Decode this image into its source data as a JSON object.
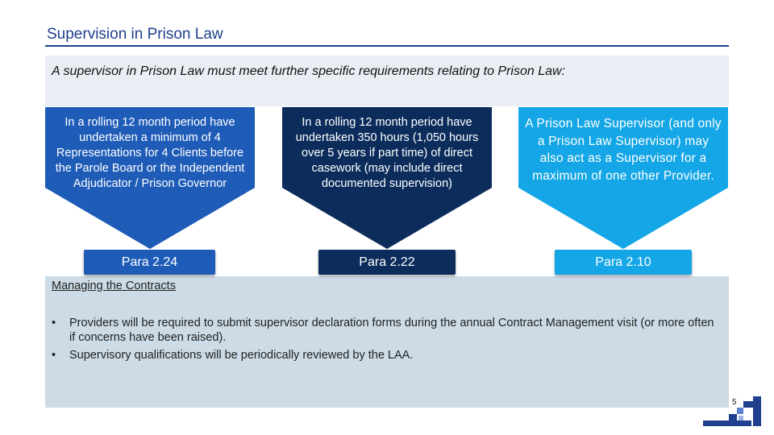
{
  "title": "Supervision in Prison Law",
  "intro": "A supervisor in Prison Law must meet further specific requirements relating to Prison Law:",
  "requirements": [
    {
      "text": "In a rolling 12 month period have undertaken a minimum of 4 Representations for 4 Clients before the Parole Board or the Independent  Adjudicator / Prison Governor",
      "para": "Para 2.24",
      "color": "#1f5cb8"
    },
    {
      "text": "In a rolling 12 month period have undertaken 350 hours (1,050 hours over 5 years if part time) of direct casework (may include direct documented supervision)",
      "para": "Para 2.22",
      "color": "#0c2d5c"
    },
    {
      "text": "A Prison Law Supervisor (and only a Prison Law Supervisor) may also act as a Supervisor for a maximum of one other Provider.",
      "para": "Para 2.10",
      "color": "#14a6e6"
    }
  ],
  "contracts": {
    "heading": "Managing the Contracts",
    "bullets": [
      "Providers will be required to submit supervisor declaration forms during the annual Contract Management visit (or more often if concerns have been raised).",
      "Supervisory qualifications will be periodically reviewed by the LAA."
    ]
  },
  "page_number": "5"
}
